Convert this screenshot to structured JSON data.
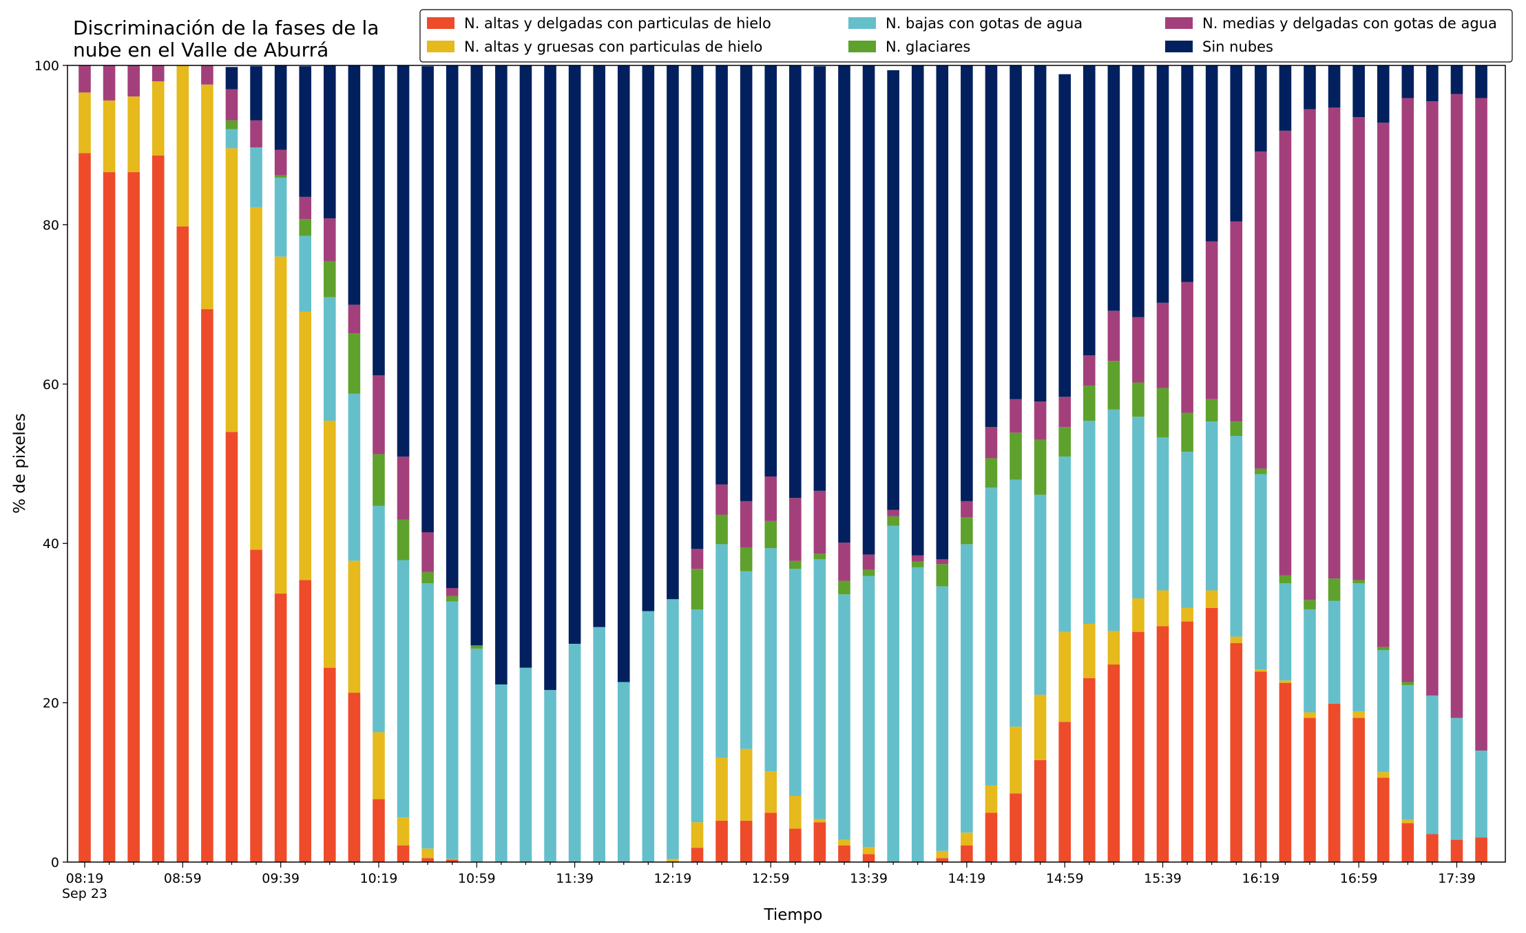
{
  "chart_data": {
    "type": "bar",
    "stacked": true,
    "title_lines": [
      "Discriminación de la fases de la",
      "nube en el Valle de Aburrá"
    ],
    "xlabel": "Tiempo",
    "ylabel": "% de pixeles",
    "ylim": [
      0,
      100
    ],
    "yticks": [
      0,
      20,
      40,
      60,
      80,
      100
    ],
    "grid": false,
    "legend_position": "top-right",
    "x_tick_labels": [
      {
        "label": "08:19",
        "sub": "Sep 23",
        "index": 0
      },
      {
        "label": "08:59",
        "index": 4
      },
      {
        "label": "09:39",
        "index": 8
      },
      {
        "label": "10:19",
        "index": 12
      },
      {
        "label": "10:59",
        "index": 16
      },
      {
        "label": "11:39",
        "index": 20
      },
      {
        "label": "12:19",
        "index": 24
      },
      {
        "label": "12:59",
        "index": 28
      },
      {
        "label": "13:39",
        "index": 32
      },
      {
        "label": "14:19",
        "index": 36
      },
      {
        "label": "14:59",
        "index": 40
      },
      {
        "label": "15:39",
        "index": 44
      },
      {
        "label": "16:19",
        "index": 48
      },
      {
        "label": "16:59",
        "index": 52
      },
      {
        "label": "17:39",
        "index": 56
      }
    ],
    "x": [
      "08:19",
      "08:29",
      "08:39",
      "08:49",
      "08:59",
      "09:09",
      "09:19",
      "09:29",
      "09:39",
      "09:49",
      "09:59",
      "10:09",
      "10:19",
      "10:29",
      "10:39",
      "10:49",
      "10:59",
      "11:09",
      "11:19",
      "11:29",
      "11:39",
      "11:49",
      "11:59",
      "12:09",
      "12:19",
      "12:29",
      "12:39",
      "12:49",
      "12:59",
      "13:09",
      "13:19",
      "13:29",
      "13:39",
      "13:49",
      "13:59",
      "14:09",
      "14:19",
      "14:29",
      "14:39",
      "14:49",
      "14:59",
      "15:09",
      "15:19",
      "15:29",
      "15:39",
      "15:49",
      "15:59",
      "16:09",
      "16:19",
      "16:29",
      "16:39",
      "16:49",
      "16:59",
      "17:09",
      "17:19",
      "17:29",
      "17:39",
      "17:49"
    ],
    "series": [
      {
        "name": "N. altas y delgadas con particulas de hielo",
        "color": "#ee4b2b",
        "values": [
          89,
          86.6,
          86.6,
          88.7,
          79.8,
          69.4,
          54,
          39.2,
          33.7,
          35.4,
          24.4,
          21.3,
          7.9,
          2.1,
          0.5,
          0.3,
          0,
          0,
          0,
          0,
          0,
          0,
          0,
          0,
          0.1,
          1.8,
          5.2,
          5.2,
          6.2,
          4.2,
          5,
          2.1,
          1,
          0,
          0,
          0.5,
          2.1,
          6.2,
          8.6,
          12.8,
          17.6,
          23.1,
          24.8,
          28.9,
          29.6,
          30.2,
          31.9,
          27.5,
          23.9,
          22.5,
          18.1,
          19.9,
          18.1,
          10.6,
          4.9,
          3.5,
          2.8,
          3.1
        ]
      },
      {
        "name": "N. altas y gruesas con particulas de hielo",
        "color": "#e6b91c",
        "values": [
          7.6,
          9,
          9.5,
          9.3,
          20.2,
          28.2,
          35.6,
          43,
          42.3,
          33.7,
          31,
          16.6,
          8.4,
          3.5,
          1.2,
          0.1,
          0,
          0,
          0,
          0,
          0,
          0,
          0,
          0,
          0.3,
          3.2,
          7.9,
          9,
          5.2,
          4.1,
          0.4,
          0.7,
          0.9,
          0,
          0,
          0.9,
          1.6,
          3.4,
          8.4,
          8.2,
          11.3,
          6.8,
          4.2,
          4.2,
          4.5,
          1.7,
          2.2,
          0.8,
          0.3,
          0.3,
          0.7,
          0,
          0.8,
          0.7,
          0.4,
          0,
          0,
          0
        ]
      },
      {
        "name": "N. bajas con gotas de agua",
        "color": "#65bfcb",
        "values": [
          0,
          0,
          0,
          0,
          0,
          0,
          2.4,
          7.5,
          9.9,
          9.5,
          15.5,
          21,
          28.4,
          32.3,
          33.3,
          32.3,
          26.8,
          22.3,
          24.4,
          21.6,
          27.4,
          29.5,
          22.6,
          31.5,
          32.6,
          26.7,
          26.8,
          22.3,
          28,
          28.5,
          32.6,
          30.8,
          34,
          42.2,
          37,
          33.2,
          36.2,
          37.4,
          31,
          25.1,
          22,
          25.5,
          27.8,
          22.8,
          19.2,
          19.6,
          21.2,
          25.2,
          24.5,
          12.2,
          12.9,
          12.9,
          16.1,
          15.3,
          16.9,
          17.4,
          15.3,
          10.9
        ]
      },
      {
        "name": "N. glaciares",
        "color": "#5ea12d",
        "values": [
          0,
          0,
          0,
          0,
          0,
          0,
          1.1,
          0,
          0.3,
          2.1,
          4.5,
          7.6,
          6.5,
          5.1,
          1.4,
          0.7,
          0.4,
          0,
          0,
          0,
          0,
          0,
          0,
          0,
          0,
          5.1,
          3.7,
          3,
          3.4,
          1,
          0.7,
          1.7,
          0.8,
          1.2,
          0.7,
          2.8,
          3.4,
          3.7,
          5.9,
          6.9,
          3.7,
          4.4,
          6.1,
          4.3,
          6.2,
          4.9,
          2.8,
          1.8,
          0.7,
          1,
          1.2,
          2.8,
          0.4,
          0.4,
          0.4,
          0,
          0,
          0
        ]
      },
      {
        "name": "N. medias y delgadas con gotas de agua",
        "color": "#a3407b",
        "values": [
          3.4,
          4.4,
          3.9,
          2,
          0,
          2.4,
          3.9,
          3.4,
          3.2,
          2.8,
          5.4,
          3.6,
          9.9,
          7.9,
          5,
          1,
          0,
          0,
          0,
          0,
          0,
          0,
          0,
          0,
          0,
          2.5,
          3.8,
          5.8,
          5.6,
          7.9,
          7.9,
          4.8,
          1.9,
          0.8,
          0.8,
          0.6,
          2,
          3.9,
          4.2,
          4.8,
          3.8,
          3.8,
          6.3,
          8.2,
          10.7,
          16.4,
          19.8,
          25.1,
          39.8,
          55.8,
          61.6,
          59.1,
          58.1,
          65.8,
          73.3,
          74.6,
          78.3,
          81.9
        ]
      },
      {
        "name": "Sin nubes",
        "color": "#03205e",
        "values": [
          0,
          0,
          0,
          0,
          0,
          0,
          2.8,
          6.8,
          10.6,
          16.4,
          19.2,
          30.1,
          38.9,
          49.1,
          58.5,
          65.6,
          72.8,
          77.7,
          75.6,
          78.4,
          72.6,
          70.5,
          77.4,
          68.5,
          67,
          60.7,
          52.6,
          54.7,
          51.6,
          54.3,
          53.3,
          59.9,
          61.4,
          55.2,
          61.5,
          62,
          54.7,
          45.4,
          41.9,
          42.2,
          40.5,
          36.4,
          30.8,
          31.6,
          29.8,
          27.2,
          22.1,
          19.6,
          10.8,
          8.2,
          5.5,
          5.3,
          6.5,
          7.2,
          4.1,
          4.5,
          3.6,
          4.1
        ]
      }
    ]
  }
}
